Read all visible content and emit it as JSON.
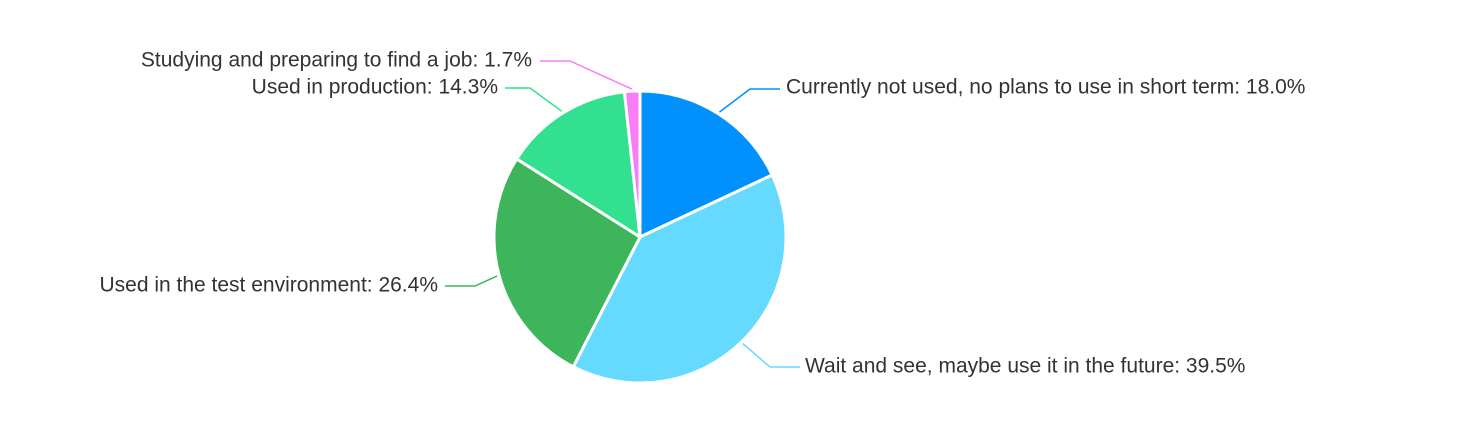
{
  "chart_data": {
    "type": "pie",
    "title": "",
    "slices": [
      {
        "label": "Currently not used, no plans to use in short term",
        "value": 18.0,
        "display": "Currently not used, no plans to use in short term: 18.0%",
        "color": "#0091FF"
      },
      {
        "label": "Wait and see, maybe use it in the future",
        "value": 39.5,
        "display": "Wait and see, maybe use it in the future: 39.5%",
        "color": "#66D9FF"
      },
      {
        "label": "Used in the test environment",
        "value": 26.4,
        "display": "Used in the test environment: 26.4%",
        "color": "#3DB55A"
      },
      {
        "label": "Used in production",
        "value": 14.3,
        "display": "Used in production: 14.3%",
        "color": "#33E090"
      },
      {
        "label": "Studying and preparing to find a job",
        "value": 1.7,
        "display": "Studying and preparing to find a job: 1.7%",
        "color": "#F97CF9"
      }
    ],
    "start_angle": "12 o'clock",
    "direction": "clockwise",
    "legend": "none"
  }
}
